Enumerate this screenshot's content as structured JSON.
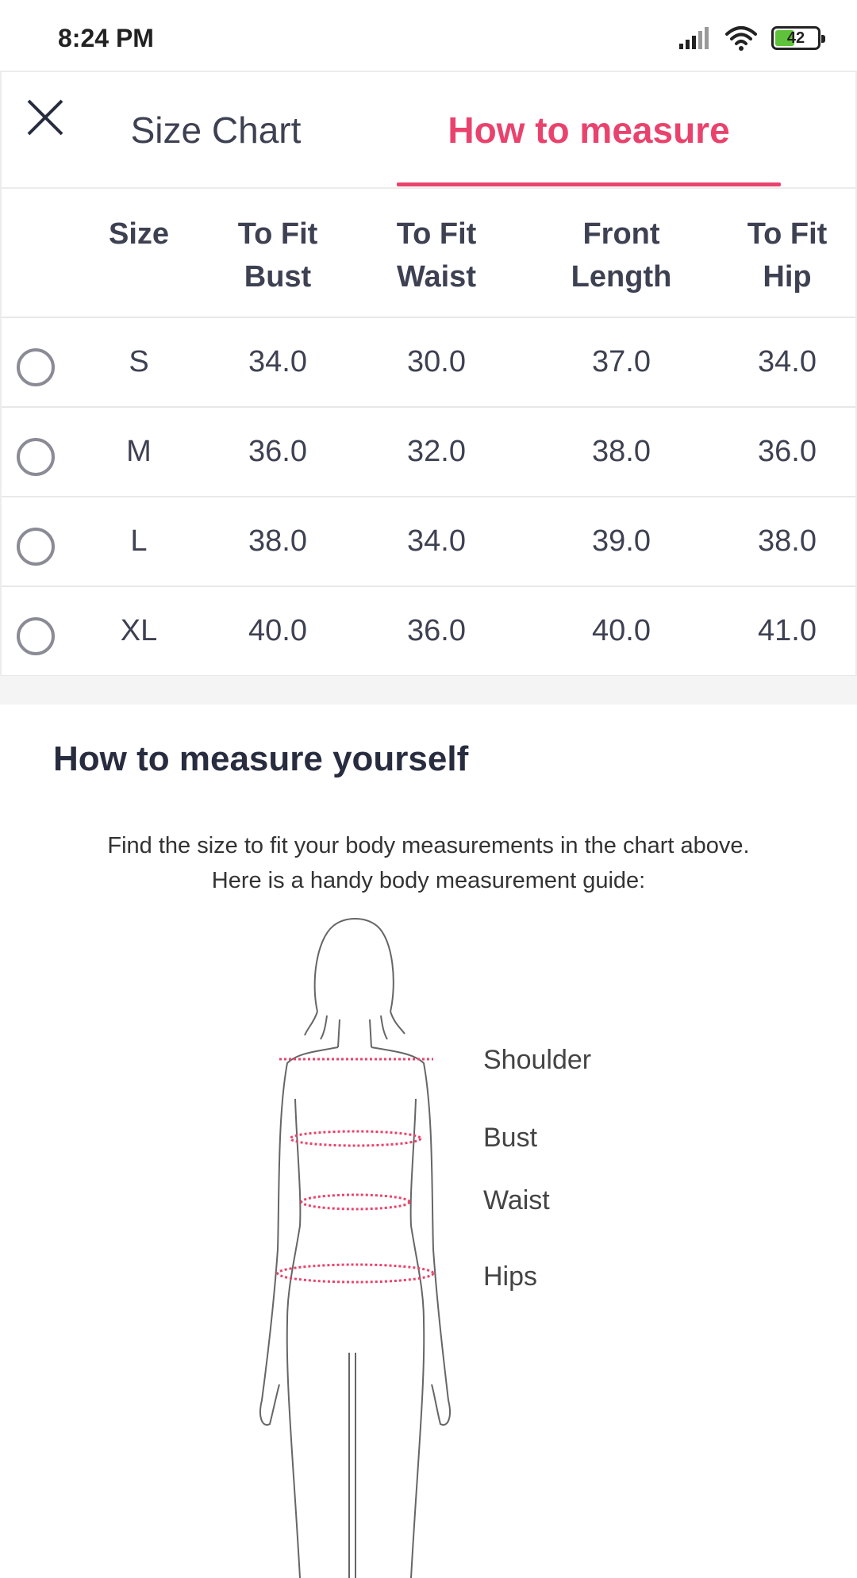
{
  "status_bar": {
    "time": "8:24 PM",
    "battery_level": "42",
    "battery_fraction": 0.42
  },
  "tabs": [
    {
      "label": "Size Chart",
      "active": false
    },
    {
      "label": "How to measure",
      "active": true
    }
  ],
  "accent_color": "#e9436d",
  "table": {
    "headers": {
      "size": "Size",
      "bust": [
        "To Fit",
        "Bust"
      ],
      "waist": [
        "To Fit",
        "Waist"
      ],
      "front": [
        "Front",
        "Length"
      ],
      "hip": [
        "To Fit",
        "Hip"
      ]
    },
    "rows": [
      {
        "size": "S",
        "bust": "34.0",
        "waist": "30.0",
        "front": "37.0",
        "hip": "34.0"
      },
      {
        "size": "M",
        "bust": "36.0",
        "waist": "32.0",
        "front": "38.0",
        "hip": "36.0"
      },
      {
        "size": "L",
        "bust": "38.0",
        "waist": "34.0",
        "front": "39.0",
        "hip": "38.0"
      },
      {
        "size": "XL",
        "bust": "40.0",
        "waist": "36.0",
        "front": "40.0",
        "hip": "41.0"
      }
    ]
  },
  "guide": {
    "title": "How to measure yourself",
    "line1": "Find the size to fit your body measurements in the chart above.",
    "line2": "Here is a handy body measurement guide:",
    "labels": {
      "shoulder": "Shoulder",
      "bust": "Bust",
      "waist": "Waist",
      "hips": "Hips"
    }
  },
  "icons": [
    "close-icon",
    "signal-icon",
    "wifi-icon",
    "battery-icon",
    "radio-icon"
  ]
}
